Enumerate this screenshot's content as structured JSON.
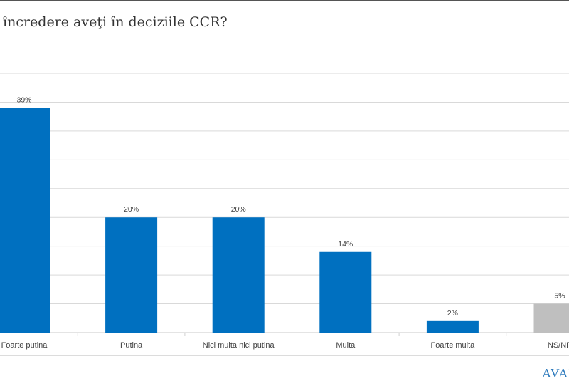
{
  "title": "încredere aveţi în deciziile CCR?",
  "logo_text": "AVAN",
  "colors": {
    "bar": "#0070c0",
    "bar_unknown": "#bfbfbf",
    "grid": "#d9d9d9"
  },
  "chart_data": {
    "type": "bar",
    "title": "încredere aveţi în deciziile CCR?",
    "categories": [
      "Foarte putina",
      "Putina",
      "Nici multa nici putina",
      "Multa",
      "Foarte multa",
      "NS/NR"
    ],
    "values": [
      39,
      20,
      20,
      14,
      2,
      5
    ],
    "data_labels": [
      "39%",
      "20%",
      "20%",
      "14%",
      "2%",
      "5%"
    ],
    "bar_colors": [
      "#0070c0",
      "#0070c0",
      "#0070c0",
      "#0070c0",
      "#0070c0",
      "#bfbfbf"
    ],
    "ylim": [
      0,
      45
    ],
    "y_grid_step": 5,
    "grid": true,
    "xlabel": "",
    "ylabel": ""
  }
}
